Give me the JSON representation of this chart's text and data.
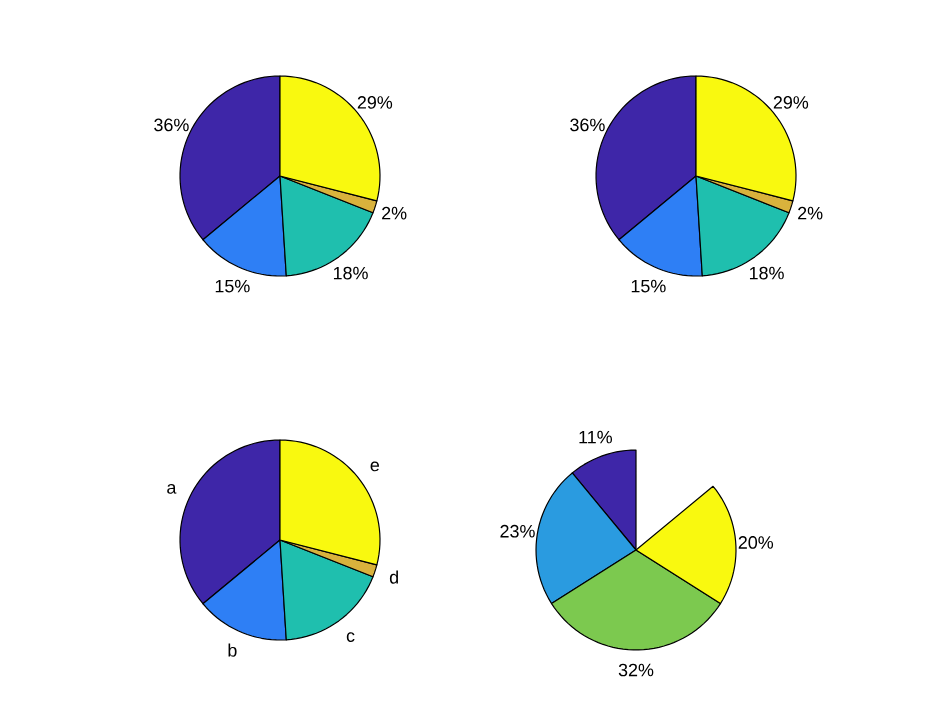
{
  "chart_data": [
    {
      "type": "pie",
      "categories": [
        null,
        null,
        null,
        null,
        null
      ],
      "values": [
        36,
        15,
        18,
        2,
        29
      ],
      "colors": [
        "#3e26a8",
        "#2e7ff5",
        "#1fbfae",
        "#d9b23c",
        "#f9f90f"
      ],
      "value_labels": [
        "36%",
        "15%",
        "18%",
        "2%",
        "29%"
      ]
    },
    {
      "type": "pie",
      "categories": [
        null,
        null,
        null,
        null,
        null
      ],
      "values": [
        36,
        15,
        18,
        2,
        29
      ],
      "colors": [
        "#3e26a8",
        "#2e7ff5",
        "#1fbfae",
        "#d9b23c",
        "#f9f90f"
      ],
      "value_labels": [
        "36%",
        "15%",
        "18%",
        "2%",
        "29%"
      ]
    },
    {
      "type": "pie",
      "categories": [
        "a",
        "b",
        "c",
        "d",
        "e"
      ],
      "values": [
        36,
        15,
        18,
        2,
        29
      ],
      "colors": [
        "#3e26a8",
        "#2e7ff5",
        "#1fbfae",
        "#d9b23c",
        "#f9f90f"
      ]
    },
    {
      "type": "pie",
      "categories": [
        null,
        null,
        null,
        null
      ],
      "values": [
        11,
        23,
        32,
        20
      ],
      "colors": [
        "#3e26a8",
        "#2a9be0",
        "#7cc94f",
        "#f9f90f"
      ],
      "value_labels": [
        "11%",
        "23%",
        "32%",
        "20%"
      ]
    }
  ]
}
